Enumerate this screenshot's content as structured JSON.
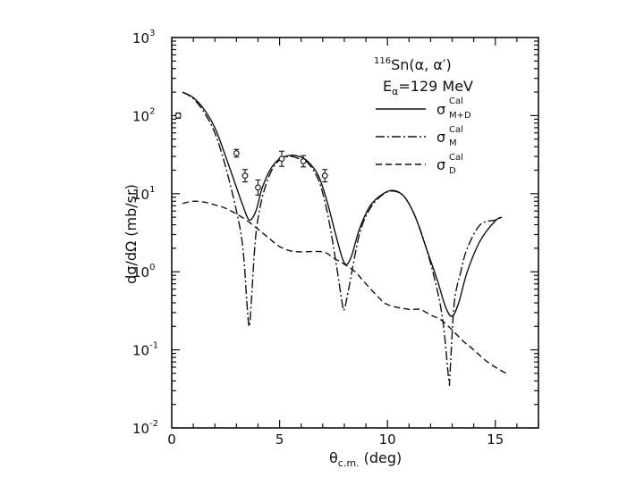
{
  "chart_data": {
    "type": "line",
    "yscale": "log",
    "xlabel_main": "θ",
    "xlabel_sub": "c.m.",
    "xlabel_unit": " (deg)",
    "ylabel": "dσ/dΩ (mb/sr)",
    "xlim": [
      0,
      17
    ],
    "ylim_exp": [
      -2,
      3
    ],
    "x_ticks": [
      0,
      5,
      10,
      15
    ],
    "y_ticks": [
      {
        "base": "10",
        "exp": "-2",
        "value": -2
      },
      {
        "base": "10",
        "exp": "-1",
        "value": -1
      },
      {
        "base": "10",
        "exp": "0",
        "value": 0
      },
      {
        "base": "10",
        "exp": "1",
        "value": 1
      },
      {
        "base": "10",
        "exp": "2",
        "value": 2
      },
      {
        "base": "10",
        "exp": "3",
        "value": 3
      }
    ],
    "title": {
      "mass": "116",
      "reaction": "Sn(α, α′)",
      "energy_symbol": "E",
      "energy_sub": "α",
      "energy_value": "=129 MeV"
    },
    "legend": [
      {
        "style": "solid",
        "symbol": "σ",
        "sup": "Cal",
        "sub": "M+D"
      },
      {
        "style": "dashdot",
        "symbol": "σ",
        "sup": "Cal",
        "sub": "M"
      },
      {
        "style": "dashed",
        "symbol": "σ",
        "sup": "Cal",
        "sub": "D"
      }
    ],
    "series": [
      {
        "name": "σ Cal M+D",
        "style": "solid",
        "x": [
          0.5,
          1,
          1.5,
          2,
          2.5,
          3,
          3.3,
          3.6,
          3.9,
          4.2,
          4.6,
          5,
          5.5,
          5.9,
          6.3,
          6.8,
          7.2,
          7.6,
          8.0,
          8.3,
          8.7,
          9.2,
          9.8,
          10.3,
          10.8,
          11.3,
          11.8,
          12.3,
          12.7,
          13.0,
          13.3,
          13.7,
          14.3,
          15.0,
          15.3
        ],
        "y": [
          200,
          170,
          120,
          70,
          30,
          12,
          7,
          4.6,
          6,
          12,
          21,
          28,
          31,
          30,
          26,
          17,
          8,
          3,
          1.3,
          1.5,
          3.5,
          7,
          10,
          11,
          9,
          5,
          2,
          0.8,
          0.35,
          0.27,
          0.4,
          1,
          2.5,
          4.5,
          5
        ]
      },
      {
        "name": "σ Cal M",
        "style": "dashdot",
        "x": [
          0.5,
          1,
          1.5,
          2,
          2.5,
          3,
          3.3,
          3.5,
          3.6,
          3.7,
          3.9,
          4.2,
          4.6,
          5,
          5.5,
          5.9,
          6.3,
          6.8,
          7.2,
          7.6,
          7.9,
          8.0,
          8.2,
          8.7,
          9.2,
          9.8,
          10.3,
          10.8,
          11.3,
          11.8,
          12.3,
          12.6,
          12.85,
          12.9,
          13.1,
          13.4,
          13.7,
          14.3,
          15.0,
          15.3
        ],
        "y": [
          200,
          165,
          110,
          60,
          22,
          6,
          2,
          0.35,
          0.2,
          0.45,
          3,
          9,
          19,
          27,
          30,
          28,
          25,
          15,
          6,
          1.4,
          0.4,
          0.33,
          0.6,
          3,
          6.5,
          9.8,
          10.8,
          9,
          5,
          2,
          0.6,
          0.2,
          0.04,
          0.05,
          0.4,
          1,
          2,
          4,
          4.6,
          5
        ]
      },
      {
        "name": "σ Cal D",
        "style": "dashed",
        "x": [
          0.5,
          1,
          1.5,
          2,
          2.5,
          3,
          3.5,
          4,
          4.5,
          5,
          5.5,
          6,
          7,
          7.5,
          8,
          8.5,
          9,
          9.5,
          10,
          11,
          11.5,
          12,
          12.5,
          13,
          13.5,
          14,
          14.5,
          15,
          15.5
        ],
        "y": [
          7.5,
          8,
          7.8,
          7.2,
          6.5,
          5.5,
          4.5,
          3.5,
          2.7,
          2.1,
          1.85,
          1.8,
          1.8,
          1.5,
          1.25,
          1,
          0.7,
          0.5,
          0.38,
          0.33,
          0.33,
          0.28,
          0.24,
          0.18,
          0.13,
          0.1,
          0.075,
          0.06,
          0.05
        ]
      }
    ],
    "points": {
      "x": [
        0.3,
        3.0,
        3.4,
        4.0,
        5.1,
        6.1,
        7.1
      ],
      "y": [
        100,
        33,
        17,
        12,
        28,
        26,
        17
      ],
      "yerr_factor": [
        1.08,
        1.12,
        1.2,
        1.25,
        1.25,
        1.18,
        1.2
      ]
    }
  }
}
